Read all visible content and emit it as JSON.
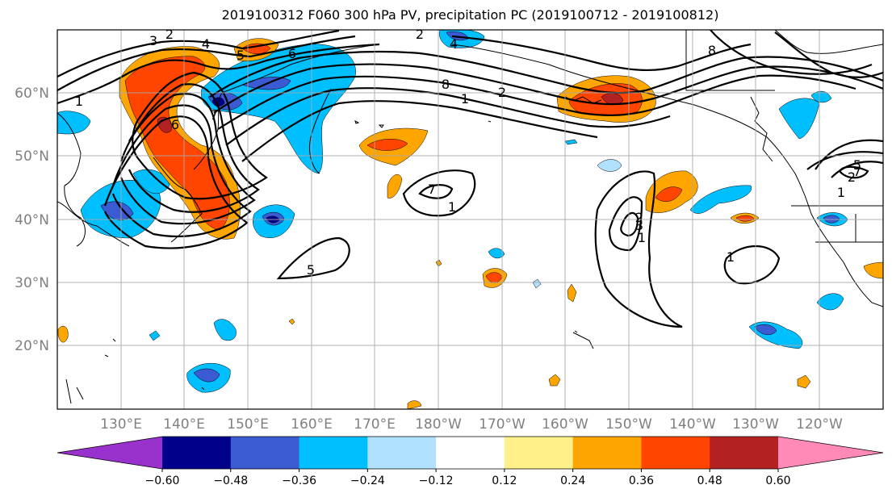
{
  "title": "2019100312 F060 300 hPa PV, precipitation PC (2019100712 - 2019100812)",
  "lat_labels": [
    "60°N",
    "50°N",
    "40°N",
    "30°N",
    "20°N"
  ],
  "lon_labels": [
    "130°E",
    "140°E",
    "150°E",
    "160°E",
    "170°E",
    "180°W",
    "170°W",
    "160°W",
    "150°W",
    "140°W",
    "130°W",
    "120°W"
  ],
  "colorbar": {
    "ticks": [
      "−0.60",
      "−0.48",
      "−0.36",
      "−0.24",
      "−0.12",
      "0.12",
      "0.24",
      "0.36",
      "0.48",
      "0.60"
    ],
    "colors": [
      "#9932cc",
      "#00008b",
      "#3a5bd1",
      "#00bfff",
      "#b0e2ff",
      "#ffffff",
      "#fff08a",
      "#ffa500",
      "#ff4500",
      "#b22222",
      "#ff8ab8"
    ]
  },
  "contour_labels": [
    "1",
    "2",
    "3",
    "4",
    "5",
    "6",
    "7",
    "8",
    "1",
    "2",
    "4",
    "6",
    "8",
    "5",
    "7",
    "1",
    "2",
    "1",
    "2",
    "3",
    "1",
    "1",
    "2",
    "5",
    "7"
  ]
}
